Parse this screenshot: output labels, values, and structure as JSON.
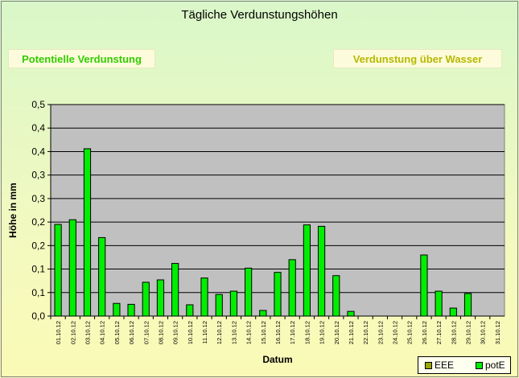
{
  "header": {
    "title": "Tägliche Verdunstungshöhen",
    "btn_potential": "Potentielle Verdunstung",
    "btn_water": "Verdunstung über Wasser"
  },
  "legend": [
    {
      "name": "EEE",
      "color": "#99aa00"
    },
    {
      "name": "potE",
      "color": "#00ee00"
    }
  ],
  "chart_data": {
    "type": "bar",
    "xlabel": "Datum",
    "ylabel": "Höhe in mm",
    "ylim": [
      0,
      0.45
    ],
    "grid": true,
    "yticks": [
      "0,0",
      "0,1",
      "0,1",
      "0,2",
      "0,2",
      "0,3",
      "0,3",
      "0,4",
      "0,4",
      "0,5"
    ],
    "categories": [
      "01.10.12",
      "02.10.12",
      "03.10.12",
      "04.10.12",
      "05.10.12",
      "06.10.12",
      "07.10.12",
      "08.10.12",
      "09.10.12",
      "10.10.12",
      "11.10.12",
      "12.10.12",
      "13.10.12",
      "14.10.12",
      "15.10.12",
      "16.10.12",
      "17.10.12",
      "18.10.12",
      "19.10.12",
      "20.10.12",
      "21.10.12",
      "22.10.12",
      "23.10.12",
      "24.10.12",
      "25.10.12",
      "26.10.12",
      "27.10.12",
      "28.10.12",
      "29.10.12",
      "30.10.12",
      "31.10.12"
    ],
    "series": [
      {
        "name": "EEE",
        "color": "#99aa00",
        "values": [
          0,
          0,
          0,
          0,
          0,
          0,
          0,
          0,
          0,
          0,
          0,
          0,
          0,
          0,
          0,
          0,
          0,
          0,
          0,
          0,
          0,
          0,
          0,
          0,
          0,
          0,
          0,
          0,
          0,
          0,
          0
        ]
      },
      {
        "name": "potE",
        "color": "#00ee00",
        "values": [
          0.195,
          0.205,
          0.356,
          0.167,
          0.027,
          0.025,
          0.072,
          0.077,
          0.112,
          0.024,
          0.081,
          0.046,
          0.053,
          0.102,
          0.012,
          0.093,
          0.12,
          0.194,
          0.191,
          0.086,
          0.01,
          0,
          0,
          0,
          0,
          0.13,
          0.053,
          0.017,
          0.048,
          0,
          0
        ]
      }
    ]
  }
}
